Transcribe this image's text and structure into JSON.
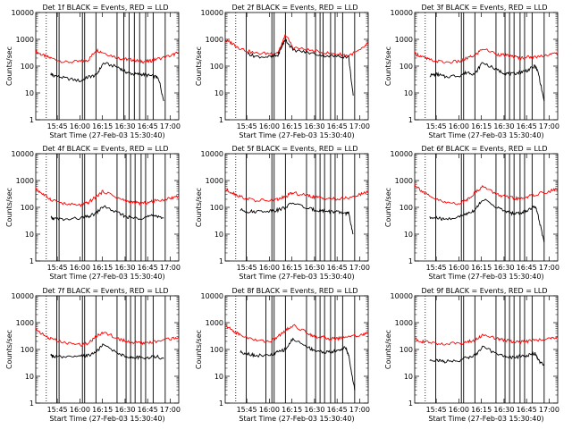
{
  "figure": {
    "ylabel": "Counts/sec",
    "xlabel": "Start Time (27-Feb-03 15:30:40)",
    "yticks": [
      "1",
      "10",
      "100",
      "1000",
      "10000"
    ],
    "xticks": [
      "15:45",
      "16:00",
      "16:15",
      "16:30",
      "16:45",
      "17:00"
    ],
    "series_colors": {
      "events": "#000000",
      "lld": "#ff0000"
    }
  },
  "chart_data": [
    {
      "type": "line",
      "title": "Det 1f BLACK = Events, RED = LLD",
      "xlabel": "Start Time (27-Feb-03 15:30:40)",
      "ylabel": "Counts/sec",
      "log_y": true,
      "ylim": [
        1,
        10000
      ],
      "grid": false,
      "x_unit": "minutes after 15:30:40",
      "xlim": [
        0,
        95
      ],
      "markers": [
        0,
        14,
        15.5,
        31,
        32.5,
        40,
        54,
        58.5,
        62,
        65.5,
        69,
        73,
        78,
        86
      ],
      "series": [
        {
          "values_x": [
            0,
            5,
            10,
            20,
            30,
            35,
            40,
            45,
            55,
            60,
            65,
            70,
            75,
            80,
            90,
            95
          ],
          "values_y": [
            350,
            250,
            200,
            140,
            150,
            170,
            400,
            320,
            200,
            180,
            170,
            150,
            150,
            180,
            250,
            320
          ]
        },
        {
          "values_x": [
            10,
            12,
            20,
            30,
            35,
            40,
            45,
            55,
            60,
            65,
            70,
            75,
            80,
            82,
            85
          ],
          "values_y": [
            50,
            45,
            35,
            28,
            40,
            45,
            130,
            90,
            60,
            50,
            50,
            45,
            40,
            30,
            5
          ]
        }
      ]
    },
    {
      "type": "line",
      "title": "Det 2f BLACK = Events, RED = LLD",
      "xlabel": "Start Time (27-Feb-03 15:30:40)",
      "ylabel": "Counts/sec",
      "log_y": true,
      "ylim": [
        1,
        10000
      ],
      "grid": false,
      "x_unit": "minutes after 15:30:40",
      "xlim": [
        0,
        95
      ],
      "markers": [
        14,
        31,
        32.5,
        40,
        54,
        60,
        63,
        65,
        70,
        73,
        78,
        86
      ],
      "series": [
        {
          "values_x": [
            0,
            5,
            10,
            20,
            30,
            35,
            38,
            40,
            45,
            55,
            65,
            75,
            82,
            90,
            95
          ],
          "values_y": [
            900,
            700,
            450,
            300,
            300,
            320,
            700,
            1500,
            500,
            400,
            320,
            280,
            250,
            400,
            700
          ]
        },
        {
          "values_x": [
            15,
            20,
            30,
            35,
            38,
            40,
            45,
            55,
            65,
            75,
            82,
            85
          ],
          "values_y": [
            300,
            230,
            220,
            250,
            600,
            1000,
            400,
            320,
            250,
            230,
            220,
            8
          ]
        }
      ]
    },
    {
      "type": "line",
      "title": "Det 3f BLACK = Events, RED = LLD",
      "xlabel": "Start Time (27-Feb-03 15:30:40)",
      "ylabel": "Counts/sec",
      "log_y": true,
      "ylim": [
        1,
        10000
      ],
      "grid": false,
      "x_unit": "minutes after 15:30:40",
      "xlim": [
        0,
        95
      ],
      "markers": [
        14,
        31,
        32.5,
        40,
        54,
        60,
        63,
        66,
        70,
        73,
        78,
        86
      ],
      "series": [
        {
          "values_x": [
            0,
            5,
            10,
            20,
            30,
            35,
            40,
            45,
            55,
            60,
            65,
            70,
            75,
            80,
            90,
            95
          ],
          "values_y": [
            300,
            220,
            170,
            140,
            150,
            200,
            250,
            450,
            280,
            250,
            230,
            200,
            220,
            220,
            280,
            300
          ]
        },
        {
          "values_x": [
            10,
            15,
            20,
            30,
            35,
            40,
            45,
            55,
            60,
            65,
            70,
            75,
            80,
            82,
            86
          ],
          "values_y": [
            45,
            50,
            40,
            45,
            60,
            50,
            140,
            70,
            55,
            50,
            60,
            70,
            100,
            60,
            5
          ]
        }
      ]
    },
    {
      "type": "line",
      "title": "Det 4f BLACK = Events, RED = LLD",
      "xlabel": "Start Time (27-Feb-03 15:30:40)",
      "ylabel": "Counts/sec",
      "log_y": true,
      "ylim": [
        1,
        10000
      ],
      "grid": false,
      "x_unit": "minutes after 15:30:40",
      "xlim": [
        0,
        95
      ],
      "markers": [
        0,
        14,
        15.5,
        31,
        32.5,
        40,
        54,
        60,
        63,
        66,
        70,
        73,
        78,
        86
      ],
      "series": [
        {
          "values_x": [
            0,
            5,
            10,
            20,
            30,
            35,
            40,
            45,
            55,
            60,
            65,
            70,
            75,
            80,
            90,
            95
          ],
          "values_y": [
            500,
            300,
            200,
            130,
            120,
            150,
            250,
            400,
            220,
            170,
            150,
            140,
            150,
            180,
            220,
            280
          ]
        },
        {
          "values_x": [
            10,
            12,
            20,
            30,
            35,
            40,
            45,
            55,
            60,
            65,
            70,
            75,
            80,
            85
          ],
          "values_y": [
            40,
            38,
            35,
            40,
            45,
            60,
            110,
            60,
            45,
            40,
            40,
            45,
            50,
            40
          ]
        }
      ]
    },
    {
      "type": "line",
      "title": "Det 5f BLACK = Events, RED = LLD",
      "xlabel": "Start Time (27-Feb-03 15:30:40)",
      "ylabel": "Counts/sec",
      "log_y": true,
      "ylim": [
        1,
        10000
      ],
      "grid": false,
      "x_unit": "minutes after 15:30:40",
      "xlim": [
        0,
        95
      ],
      "markers": [
        14,
        31,
        32.5,
        40,
        54,
        60,
        63,
        66,
        70,
        73,
        78,
        86
      ],
      "series": [
        {
          "values_x": [
            0,
            5,
            10,
            20,
            30,
            35,
            40,
            45,
            55,
            60,
            65,
            70,
            75,
            80,
            90,
            95
          ],
          "values_y": [
            450,
            350,
            250,
            180,
            180,
            200,
            250,
            350,
            270,
            240,
            220,
            210,
            200,
            220,
            300,
            400
          ]
        },
        {
          "values_x": [
            10,
            15,
            20,
            30,
            35,
            40,
            45,
            55,
            60,
            65,
            70,
            75,
            80,
            82,
            85
          ],
          "values_y": [
            80,
            70,
            70,
            75,
            80,
            100,
            150,
            90,
            80,
            75,
            70,
            65,
            60,
            60,
            10
          ]
        }
      ]
    },
    {
      "type": "line",
      "title": "Det 6f BLACK = Events, RED = LLD",
      "xlabel": "Start Time (27-Feb-03 15:30:40)",
      "ylabel": "Counts/sec",
      "log_y": true,
      "ylim": [
        1,
        10000
      ],
      "grid": false,
      "x_unit": "minutes after 15:30:40",
      "xlim": [
        0,
        95
      ],
      "markers": [
        14,
        31,
        32.5,
        40,
        54,
        60,
        63,
        66,
        70,
        73,
        78,
        86
      ],
      "series": [
        {
          "values_x": [
            0,
            5,
            10,
            20,
            30,
            35,
            40,
            45,
            55,
            60,
            65,
            70,
            75,
            80,
            90,
            95
          ],
          "values_y": [
            700,
            400,
            250,
            150,
            140,
            200,
            350,
            600,
            300,
            250,
            220,
            200,
            250,
            300,
            400,
            500
          ]
        },
        {
          "values_x": [
            10,
            15,
            20,
            30,
            35,
            40,
            45,
            55,
            60,
            65,
            70,
            75,
            80,
            82,
            86
          ],
          "values_y": [
            40,
            40,
            35,
            45,
            60,
            80,
            200,
            100,
            70,
            60,
            60,
            80,
            110,
            50,
            5
          ]
        }
      ]
    },
    {
      "type": "line",
      "title": "Det 7f BLACK = Events, RED = LLD",
      "xlabel": "Start Time (27-Feb-03 15:30:40)",
      "ylabel": "Counts/sec",
      "log_y": true,
      "ylim": [
        1,
        10000
      ],
      "grid": false,
      "x_unit": "minutes after 15:30:40",
      "xlim": [
        0,
        95
      ],
      "markers": [
        0,
        14,
        15.5,
        31,
        32.5,
        40,
        54,
        60,
        63,
        66,
        70,
        73,
        78,
        86
      ],
      "series": [
        {
          "values_x": [
            0,
            5,
            10,
            20,
            30,
            35,
            40,
            45,
            55,
            60,
            65,
            70,
            75,
            80,
            90,
            95
          ],
          "values_y": [
            600,
            350,
            250,
            170,
            150,
            170,
            300,
            450,
            250,
            200,
            180,
            170,
            170,
            200,
            250,
            300
          ]
        },
        {
          "values_x": [
            10,
            12,
            20,
            30,
            35,
            40,
            45,
            55,
            60,
            65,
            70,
            75,
            80,
            85
          ],
          "values_y": [
            60,
            55,
            50,
            55,
            60,
            80,
            150,
            70,
            55,
            50,
            50,
            50,
            55,
            45
          ]
        }
      ]
    },
    {
      "type": "line",
      "title": "Det 8f BLACK = Events, RED = LLD",
      "xlabel": "Start Time (27-Feb-03 15:30:40)",
      "ylabel": "Counts/sec",
      "log_y": true,
      "ylim": [
        1,
        10000
      ],
      "grid": false,
      "x_unit": "minutes after 15:30:40",
      "xlim": [
        0,
        95
      ],
      "markers": [
        14,
        27,
        31,
        32.5,
        40,
        54,
        60,
        63,
        66,
        70,
        73,
        78,
        86
      ],
      "series": [
        {
          "values_x": [
            0,
            5,
            10,
            20,
            30,
            35,
            40,
            45,
            55,
            60,
            65,
            70,
            75,
            80,
            90,
            95
          ],
          "values_y": [
            800,
            500,
            350,
            220,
            200,
            300,
            500,
            800,
            400,
            300,
            280,
            250,
            260,
            300,
            350,
            400
          ]
        },
        {
          "values_x": [
            10,
            15,
            20,
            30,
            35,
            40,
            45,
            55,
            60,
            65,
            70,
            75,
            80,
            82,
            86
          ],
          "values_y": [
            80,
            70,
            60,
            60,
            80,
            100,
            250,
            120,
            90,
            80,
            80,
            90,
            120,
            60,
            3
          ]
        }
      ]
    },
    {
      "type": "line",
      "title": "Det 9f BLACK = Events, RED = LLD",
      "xlabel": "Start Time (27-Feb-03 15:30:40)",
      "ylabel": "Counts/sec",
      "log_y": true,
      "ylim": [
        1,
        10000
      ],
      "grid": false,
      "x_unit": "minutes after 15:30:40",
      "xlim": [
        0,
        95
      ],
      "markers": [
        14,
        31,
        32.5,
        40,
        54,
        60,
        63,
        66,
        70,
        73,
        78,
        86
      ],
      "series": [
        {
          "values_x": [
            0,
            5,
            10,
            20,
            30,
            35,
            40,
            45,
            55,
            60,
            65,
            70,
            75,
            80,
            90,
            95
          ],
          "values_y": [
            250,
            200,
            180,
            160,
            170,
            190,
            220,
            350,
            250,
            220,
            200,
            190,
            200,
            220,
            250,
            270
          ]
        },
        {
          "values_x": [
            10,
            15,
            20,
            30,
            35,
            40,
            45,
            55,
            60,
            65,
            70,
            75,
            80,
            82,
            86
          ],
          "values_y": [
            40,
            40,
            35,
            40,
            50,
            60,
            120,
            70,
            55,
            50,
            55,
            60,
            70,
            40,
            25
          ]
        }
      ]
    }
  ]
}
